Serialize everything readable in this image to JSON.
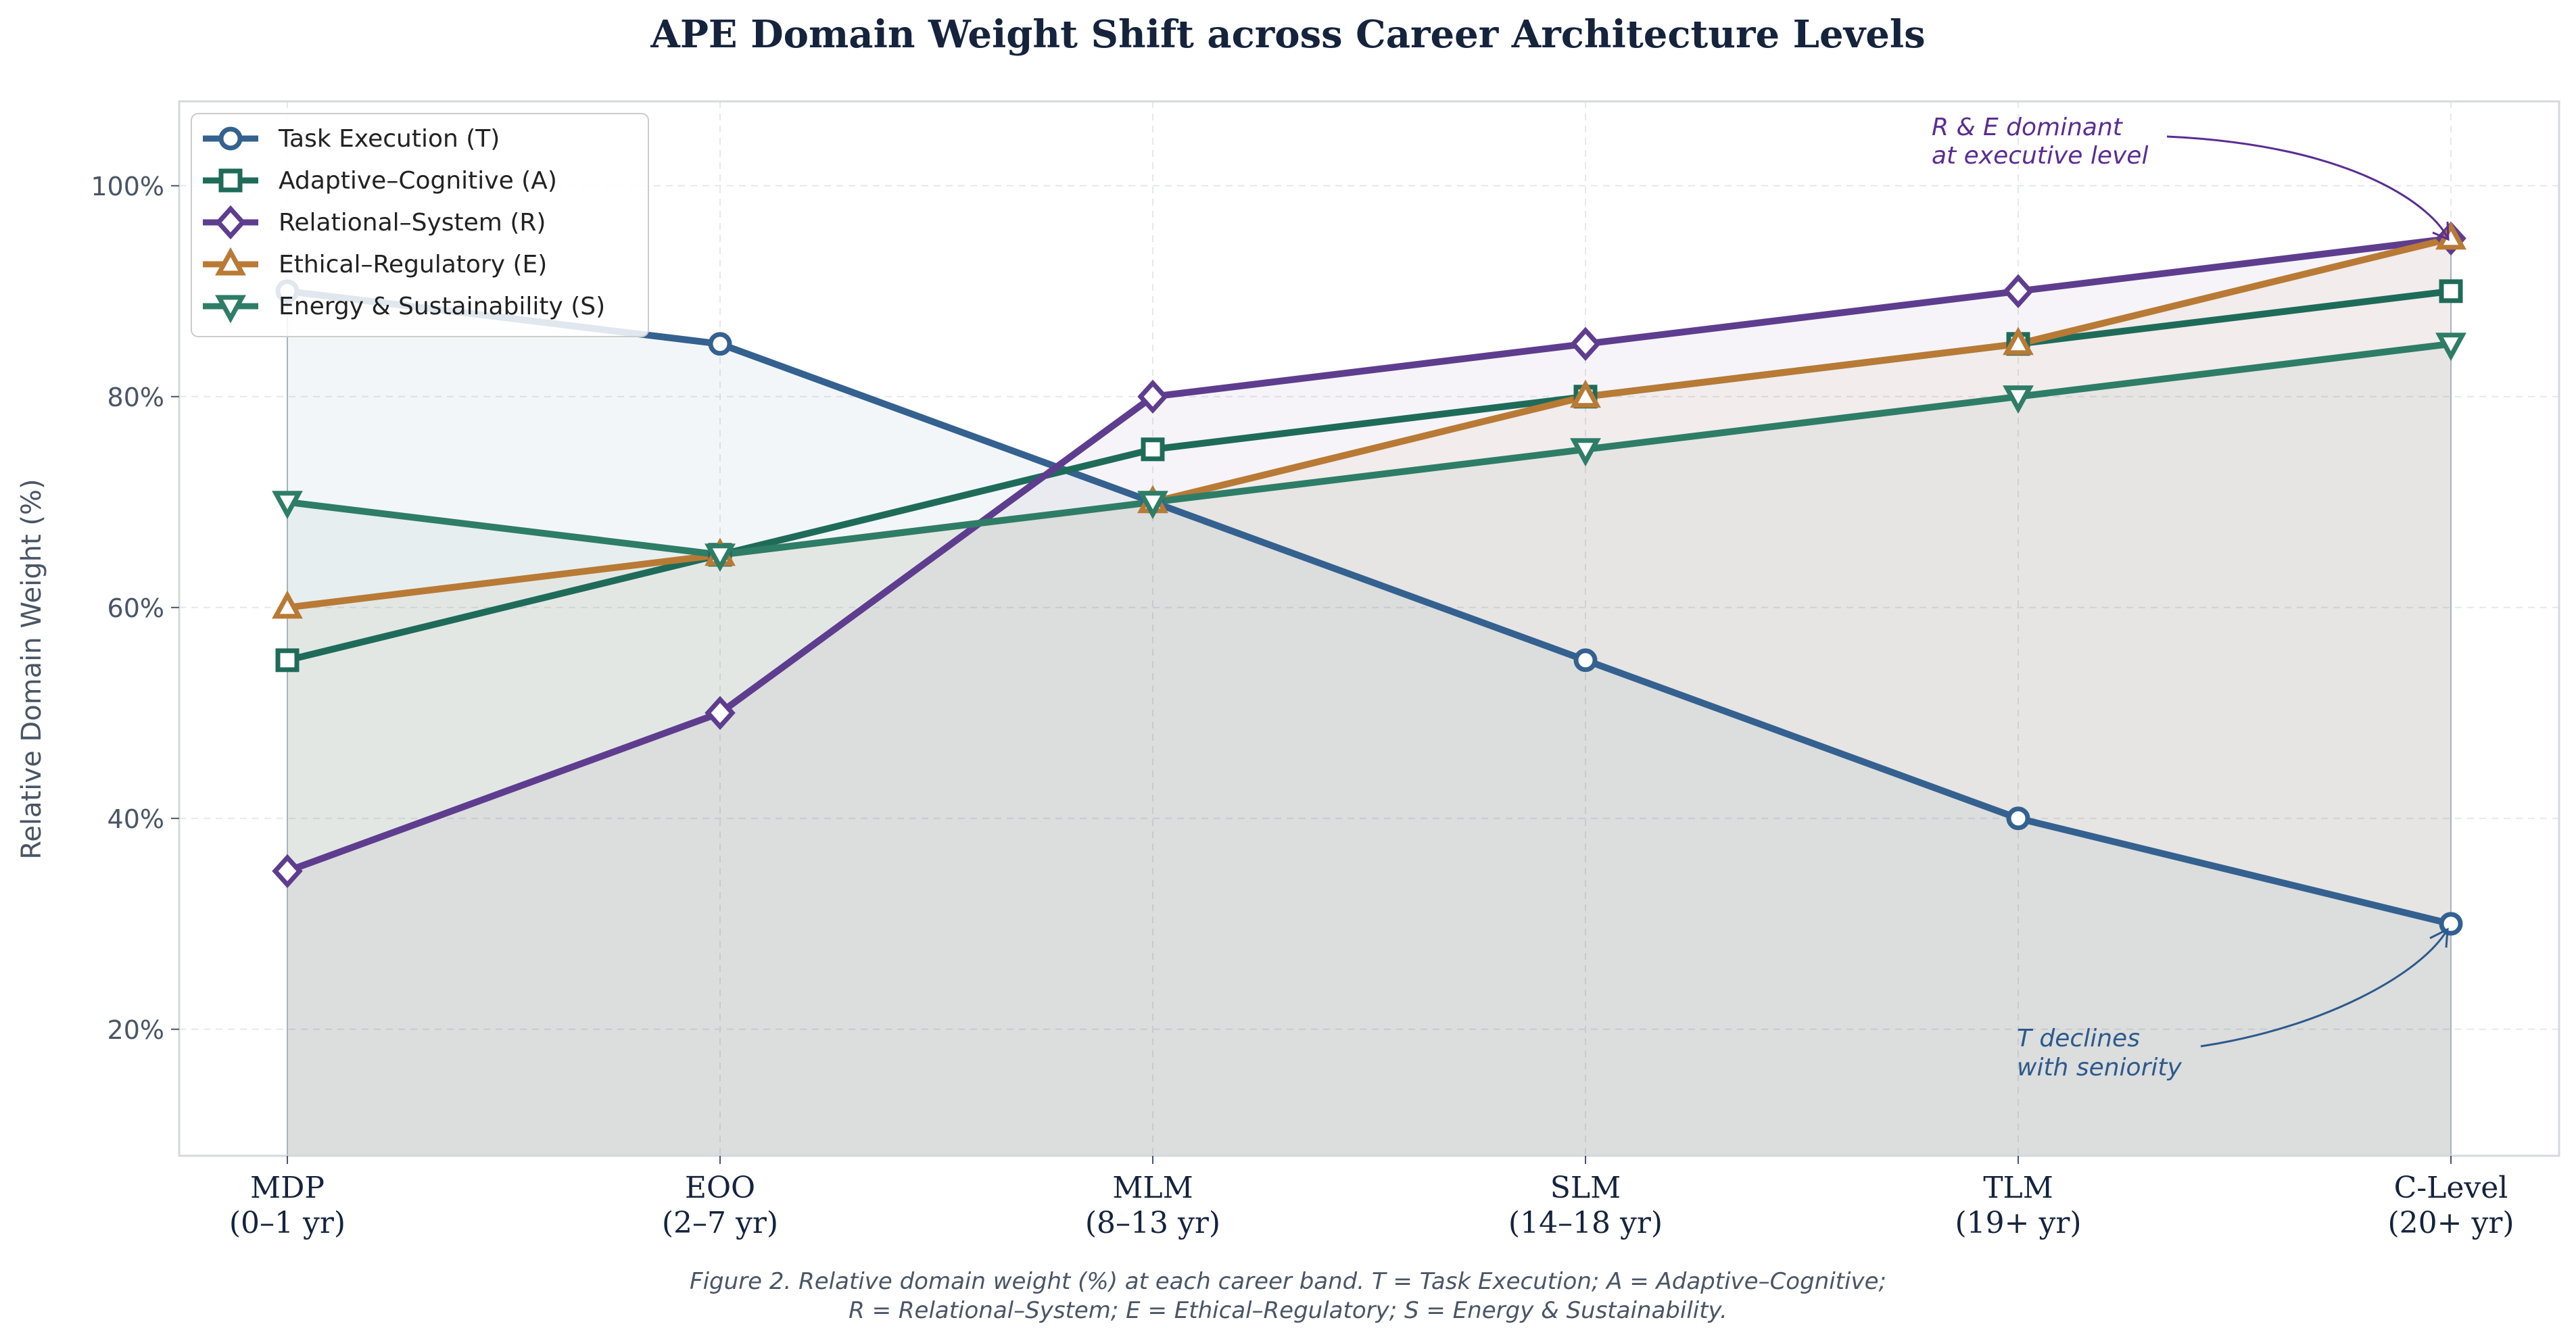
{
  "chart_data": {
    "type": "line",
    "title": "APE Domain Weight Shift across Career Architecture Levels",
    "ylabel": "Relative Domain Weight (%)",
    "xlabel": "",
    "categories": [
      {
        "code": "MDP",
        "years": "(0–1 yr)"
      },
      {
        "code": "EOO",
        "years": "(2–7 yr)"
      },
      {
        "code": "MLM",
        "years": "(8–13 yr)"
      },
      {
        "code": "SLM",
        "years": "(14–18 yr)"
      },
      {
        "code": "TLM",
        "years": "(19+ yr)"
      },
      {
        "code": "C-Level",
        "years": "(20+ yr)"
      }
    ],
    "ylim": [
      8,
      108
    ],
    "yticks": [
      {
        "value": 20,
        "label": "20%"
      },
      {
        "value": 40,
        "label": "40%"
      },
      {
        "value": 60,
        "label": "60%"
      },
      {
        "value": 80,
        "label": "80%"
      },
      {
        "value": 100,
        "label": "100%"
      }
    ],
    "grid": true,
    "legend_position": "top-left",
    "series": [
      {
        "name": "Task Execution (T)",
        "values": [
          90,
          85,
          70,
          55,
          40,
          30
        ],
        "color": "#34618f",
        "marker": "circle",
        "fill": true
      },
      {
        "name": "Adaptive–Cognitive (A)",
        "values": [
          55,
          65,
          75,
          80,
          85,
          90
        ],
        "color": "#1f6b5a",
        "marker": "square",
        "fill": false
      },
      {
        "name": "Relational–System (R)",
        "values": [
          35,
          50,
          80,
          85,
          90,
          95
        ],
        "color": "#5e3d8f",
        "marker": "diamond",
        "fill": true
      },
      {
        "name": "Ethical–Regulatory (E)",
        "values": [
          60,
          65,
          70,
          80,
          85,
          95
        ],
        "color": "#b87a35",
        "marker": "triangle-up",
        "fill": true
      },
      {
        "name": "Energy & Sustainability (S)",
        "values": [
          70,
          65,
          70,
          75,
          80,
          85
        ],
        "color": "#2e7d67",
        "marker": "triangle-down",
        "fill": true
      }
    ],
    "annotations": [
      {
        "text_lines": [
          "R & E dominant",
          "at executive level"
        ],
        "color": "#5a2d91",
        "target": {
          "x": 5,
          "y": 95
        }
      },
      {
        "text_lines": [
          "T declines",
          "with seniority"
        ],
        "color": "#2c5a8c",
        "target": {
          "x": 5,
          "y": 30
        }
      }
    ],
    "caption_lines": [
      "Figure 2. Relative domain weight (%) at each career band. T = Task Execution; A = Adaptive–Cognitive;",
      "R = Relational–System; E = Ethical–Regulatory; S = Energy & Sustainability."
    ]
  },
  "colors": {
    "title": "#15233d",
    "axis_text": "#4a5565",
    "spine": "#d5d9de",
    "grid": "#e6e8eb",
    "caption": "#4a5565"
  }
}
